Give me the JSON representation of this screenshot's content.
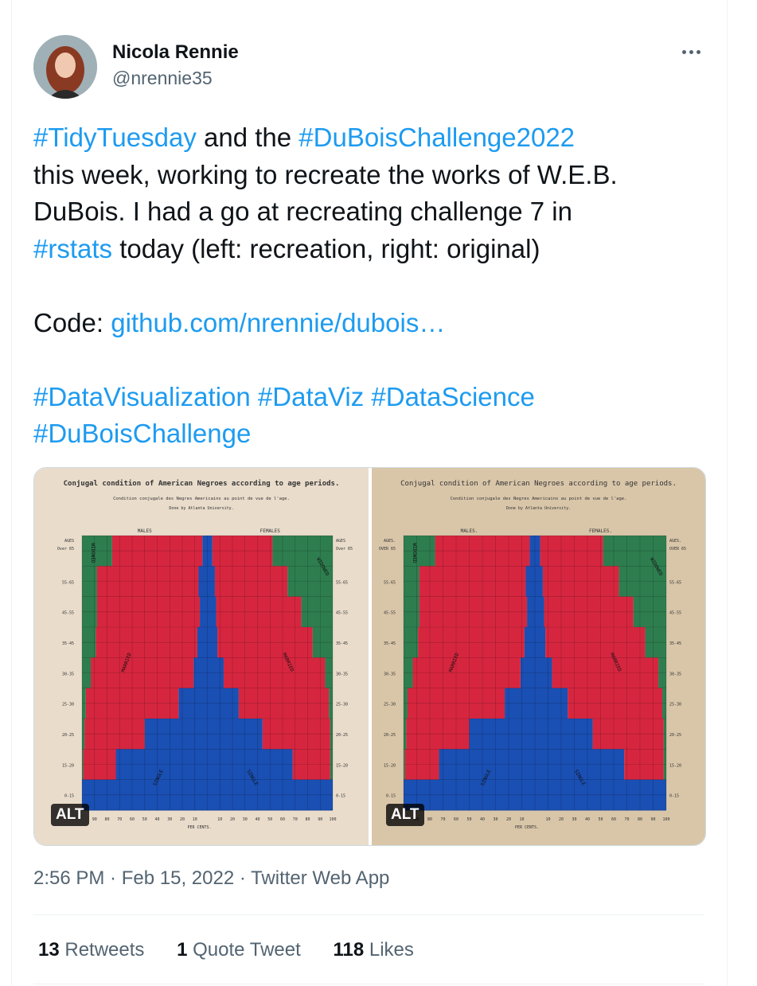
{
  "author": {
    "name": "Nicola Rennie",
    "handle": "@nrennie35"
  },
  "tweet": {
    "lines": [
      [
        {
          "t": "#TidyTuesday",
          "link": true
        },
        {
          "t": " and the ",
          "link": false
        },
        {
          "t": "#DuBoisChallenge2022",
          "link": true
        }
      ],
      [
        {
          "t": "this week, working to recreate the works of W.E.B.",
          "link": false
        }
      ],
      [
        {
          "t": "DuBois. I had a go at recreating challenge 7 in",
          "link": false
        }
      ],
      [
        {
          "t": "#rstats",
          "link": true
        },
        {
          "t": " today (left: recreation, right: original)",
          "link": false
        }
      ],
      [],
      [
        {
          "t": "Code: ",
          "link": false
        },
        {
          "t": "github.com/nrennie/dubois…",
          "link": true
        }
      ],
      [],
      [
        {
          "t": "#DataVisualization",
          "link": true
        },
        {
          "t": " ",
          "link": false
        },
        {
          "t": "#DataViz",
          "link": true
        },
        {
          "t": " ",
          "link": false
        },
        {
          "t": "#DataScience",
          "link": true
        }
      ],
      [
        {
          "t": "#DuBoisChallenge",
          "link": true
        }
      ]
    ]
  },
  "media": {
    "alt_label": "ALT",
    "left": {
      "title": "Conjugal condition of American Negroes according to age periods.",
      "subtitle": "Condition conjugale des Negres Americains au point de vue de l'age.",
      "credit": "Done by Atlanta University.",
      "males": "MALES",
      "females": "FEMALES",
      "ages_head": "AGES",
      "ages_sub": "Over 65",
      "percents": "PER CENTS.",
      "widowed": "WIDOWED",
      "married": "MARRIED",
      "single": "SINGLE"
    },
    "right": {
      "title": "Conjugal condition of American Negroes according to age periods.",
      "subtitle": "Condition conjugale des Negres Americains au point de vue de l'age.",
      "credit": "Done by Atlanta University.",
      "males": "MALES.",
      "females": "FEMALES.",
      "ages_head": "AGES.",
      "ages_sub": "OVER 65",
      "percents": "PER CENTS.",
      "widowed": "WIDOWED",
      "married": "MARRIED",
      "single": "SINGLE"
    },
    "age_groups": [
      "Over 65",
      "55-65",
      "45-55",
      "35-45",
      "30-35",
      "25-30",
      "20-25",
      "15-20",
      "0-15"
    ],
    "axis_ticks_left": [
      "90",
      "80",
      "70",
      "60",
      "50",
      "40",
      "30",
      "20",
      "10"
    ],
    "axis_ticks_right": [
      "10",
      "20",
      "30",
      "40",
      "50",
      "60",
      "70",
      "80",
      "90",
      "100"
    ],
    "colors": {
      "single": "#1a4fb3",
      "married": "#d6263f",
      "widowed": "#2e7d4f",
      "paper_left": "#e9dccb",
      "paper_right": "#d9c6a9"
    },
    "males_pct": [
      {
        "single": 4,
        "married": 72,
        "widowed": 24
      },
      {
        "single": 7,
        "married": 81,
        "widowed": 12
      },
      {
        "single": 6,
        "married": 82,
        "widowed": 12
      },
      {
        "single": 8,
        "married": 81,
        "widowed": 11
      },
      {
        "single": 11,
        "married": 82,
        "widowed": 7
      },
      {
        "single": 23,
        "married": 74,
        "widowed": 3
      },
      {
        "single": 50,
        "married": 48,
        "widowed": 2
      },
      {
        "single": 73,
        "married": 26,
        "widowed": 1
      },
      {
        "single": 100,
        "married": 0,
        "widowed": 0
      }
    ],
    "females_pct": [
      {
        "single": 4,
        "married": 48,
        "widowed": 48
      },
      {
        "single": 6,
        "married": 58,
        "widowed": 36
      },
      {
        "single": 7,
        "married": 68,
        "widowed": 25
      },
      {
        "single": 8,
        "married": 76,
        "widowed": 16
      },
      {
        "single": 13,
        "married": 81,
        "widowed": 6
      },
      {
        "single": 25,
        "married": 72,
        "widowed": 3
      },
      {
        "single": 44,
        "married": 54,
        "widowed": 2
      },
      {
        "single": 68,
        "married": 30,
        "widowed": 2
      },
      {
        "single": 100,
        "married": 0,
        "widowed": 0
      }
    ]
  },
  "meta": {
    "time": "2:56 PM",
    "date": "Feb 15, 2022",
    "source": "Twitter Web App",
    "sep": " · "
  },
  "stats": {
    "retweets_count": "13",
    "retweets_label": "Retweets",
    "quotes_count": "1",
    "quotes_label": "Quote Tweet",
    "likes_count": "118",
    "likes_label": "Likes"
  }
}
